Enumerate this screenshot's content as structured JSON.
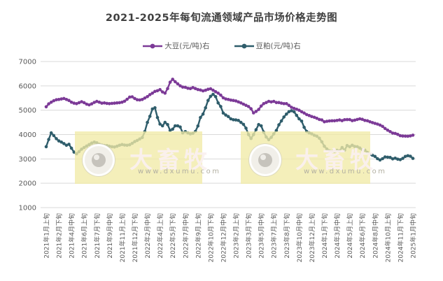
{
  "title": "2021-2025年每旬流通领域产品市场价格走势图",
  "legend": {
    "items": [
      {
        "label": "大豆(元/吨)右",
        "color": "#7c3a97"
      },
      {
        "label": "豆粕(元/吨)右",
        "color": "#2f5d6b"
      }
    ]
  },
  "watermark": {
    "brand": "大畜牧",
    "url": "www.dxumu.com"
  },
  "chart_data": {
    "type": "line",
    "title": "2021-2025年每旬流通领域产品市场价格走势图",
    "xlabel": "",
    "ylabel": "",
    "ylim": [
      1000,
      7000
    ],
    "y_ticks": [
      7000,
      6000,
      5000,
      4000,
      3000,
      2000,
      1000
    ],
    "grid": "horizontal",
    "legend_position": "top",
    "n_points": 146,
    "label_every": 5,
    "x_labels": [
      "2021年1月上旬",
      "2021年2月下旬",
      "2021年4月中旬",
      "2021年6月上旬",
      "2021年7月下旬",
      "2021年9月中旬",
      "2021年11月上旬",
      "2021年12月下旬",
      "2022年2月中旬",
      "2022年4月上旬",
      "2022年5月下旬",
      "2022年7月中旬",
      "2022年9月上旬",
      "2022年10月下旬",
      "2022年12月中旬",
      "2023年2月上旬",
      "2023年3月下旬",
      "2023年5月中旬",
      "2023年7月上旬",
      "2023年8月下旬",
      "2023年10月中旬",
      "2023年12月上旬",
      "2024年1月下旬",
      "2024年3月中旬",
      "2024年5月上旬",
      "2024年6月下旬",
      "2024年8月中旬",
      "2024年10月上旬",
      "2024年11月下旬",
      "2025年1月中旬"
    ],
    "series": [
      {
        "name": "大豆(元/吨)右",
        "color": "#7c3a97",
        "values": [
          5140,
          5260,
          5330,
          5390,
          5430,
          5440,
          5460,
          5480,
          5440,
          5400,
          5330,
          5290,
          5270,
          5310,
          5350,
          5310,
          5250,
          5220,
          5260,
          5320,
          5360,
          5330,
          5290,
          5300,
          5280,
          5270,
          5280,
          5290,
          5300,
          5310,
          5330,
          5370,
          5450,
          5540,
          5550,
          5480,
          5430,
          5420,
          5440,
          5500,
          5560,
          5640,
          5700,
          5770,
          5800,
          5845,
          5750,
          5700,
          5890,
          6150,
          6270,
          6170,
          6085,
          6000,
          5950,
          5940,
          5900,
          5890,
          5930,
          5890,
          5850,
          5830,
          5795,
          5820,
          5860,
          5880,
          5820,
          5760,
          5700,
          5620,
          5510,
          5460,
          5440,
          5415,
          5400,
          5380,
          5340,
          5300,
          5250,
          5200,
          5150,
          5060,
          4890,
          4950,
          5030,
          5170,
          5270,
          5315,
          5365,
          5340,
          5365,
          5315,
          5315,
          5290,
          5270,
          5270,
          5200,
          5120,
          5075,
          5040,
          5000,
          4935,
          4885,
          4820,
          4780,
          4740,
          4710,
          4670,
          4620,
          4600,
          4525,
          4545,
          4560,
          4565,
          4565,
          4580,
          4600,
          4570,
          4610,
          4615,
          4615,
          4570,
          4590,
          4620,
          4645,
          4625,
          4580,
          4565,
          4525,
          4490,
          4460,
          4430,
          4390,
          4335,
          4250,
          4180,
          4120,
          4060,
          4045,
          4010,
          3955,
          3940,
          3935,
          3930,
          3945,
          3975
        ]
      },
      {
        "name": "豆粕(元/吨)右",
        "color": "#2f5d6b",
        "values": [
          3500,
          3800,
          4070,
          3960,
          3830,
          3740,
          3690,
          3630,
          3560,
          3600,
          3440,
          3280,
          3210,
          3300,
          3400,
          3470,
          3530,
          3590,
          3650,
          3690,
          3660,
          3600,
          3570,
          3550,
          3545,
          3520,
          3500,
          3490,
          3520,
          3560,
          3590,
          3570,
          3560,
          3580,
          3640,
          3710,
          3760,
          3820,
          3880,
          4120,
          4500,
          4750,
          5050,
          5100,
          4700,
          4430,
          4360,
          4500,
          4410,
          4170,
          4220,
          4360,
          4360,
          4310,
          4070,
          4120,
          4070,
          4030,
          4050,
          4130,
          4350,
          4700,
          4840,
          5100,
          5400,
          5570,
          5655,
          5560,
          5300,
          5150,
          4885,
          4800,
          4740,
          4645,
          4610,
          4600,
          4580,
          4500,
          4420,
          4260,
          4000,
          3840,
          4000,
          4200,
          4410,
          4360,
          4100,
          3900,
          3790,
          3885,
          4030,
          4170,
          4400,
          4560,
          4720,
          4840,
          4940,
          4980,
          4935,
          4790,
          4645,
          4550,
          4300,
          4125,
          4070,
          4030,
          3970,
          3935,
          3850,
          3700,
          3520,
          3405,
          3330,
          3310,
          3310,
          3350,
          3330,
          3470,
          3360,
          3550,
          3500,
          3560,
          3510,
          3500,
          3450,
          3380,
          3360,
          3265,
          3185,
          3150,
          3100,
          3010,
          2955,
          3010,
          3080,
          3070,
          3060,
          3000,
          3030,
          2990,
          2970,
          3020,
          3100,
          3130,
          3110,
          3020
        ]
      }
    ],
    "style": {
      "grid_color": "#d9d9d9",
      "tick_label_color": "#595959",
      "title_color": "#404040",
      "watermark_bg": "#f1eaa6"
    }
  }
}
